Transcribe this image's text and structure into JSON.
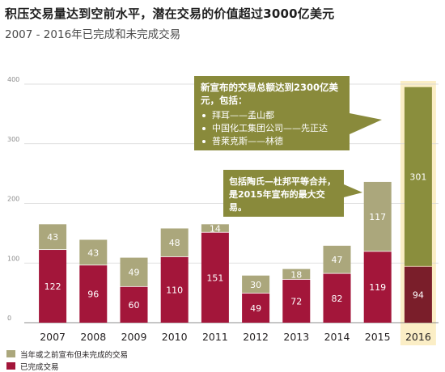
{
  "title": "积压交易量达到空前水平，潜在交易的价值超过3000亿美元",
  "subtitle": "2007 - 2016年已完成和未完成交易",
  "colors": {
    "completed": "#a3163a",
    "pending": "#aba77c",
    "completed_2016": "#7a1e2a",
    "pending_2016": "#8a8e3d",
    "highlight": "#fbeec6",
    "callout": "#898a3b"
  },
  "chart_data": {
    "type": "bar",
    "stacked": true,
    "categories": [
      "2007",
      "2008",
      "2009",
      "2010",
      "2011",
      "2012",
      "2013",
      "2014",
      "2015",
      "2016"
    ],
    "series": [
      {
        "name": "已完成交易",
        "values": [
          122,
          96,
          60,
          110,
          151,
          49,
          72,
          82,
          119,
          94
        ]
      },
      {
        "name": "当年或之前宣布但未完成的交易",
        "values": [
          43,
          43,
          49,
          48,
          14,
          30,
          18,
          47,
          117,
          301
        ]
      }
    ],
    "yticks": [
      0,
      100,
      200,
      300,
      400
    ],
    "ylim": [
      0,
      400
    ],
    "grid": true,
    "highlight_category": "2016",
    "legend_position": "bottom-left"
  },
  "callouts": {
    "main": {
      "head": "新宣布的交易总额达到2300亿美元，包括：",
      "items": [
        "拜耳——孟山都",
        "中国化工集团公司——先正达",
        "普莱克斯——林德"
      ]
    },
    "second": {
      "text": "包括陶氏—杜邦平等合并，是2015年宣布的最大交易。"
    }
  },
  "legend": {
    "pending": "当年或之前宣布但未完成的交易",
    "completed": "已完成交易"
  }
}
